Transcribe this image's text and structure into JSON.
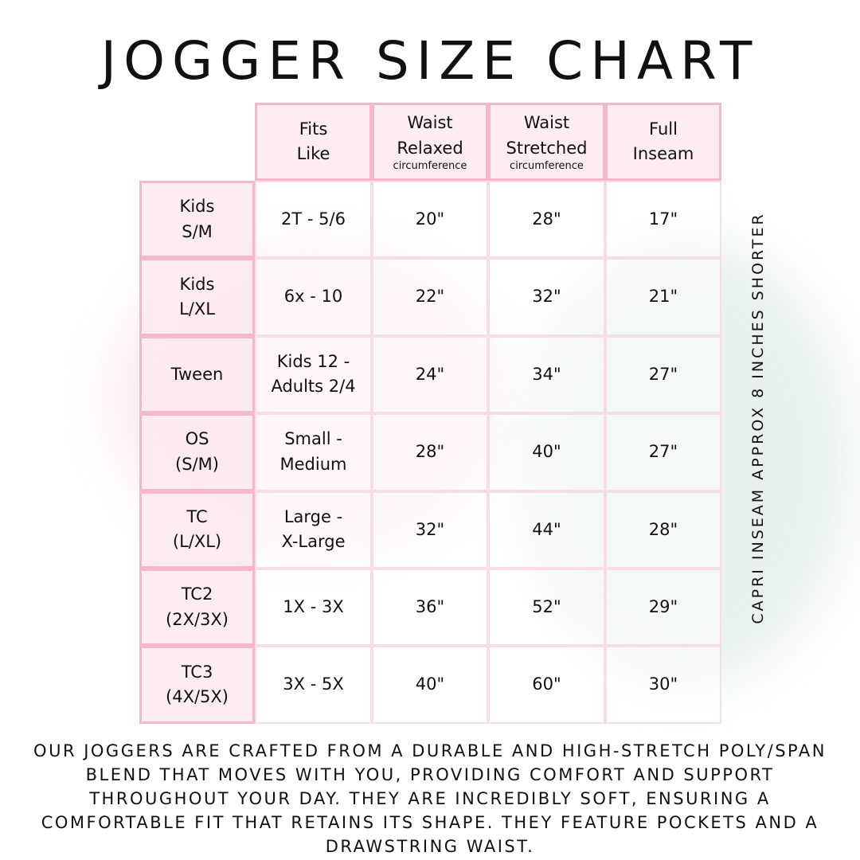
{
  "title": "JOGGER SIZE CHART",
  "colors": {
    "border": "#f5b8c8",
    "header_fill": "#fdeaf0"
  },
  "headers": [
    {
      "lines": [
        "Fits",
        "Like"
      ],
      "sub": ""
    },
    {
      "lines": [
        "Waist",
        "Relaxed"
      ],
      "sub": "circumference"
    },
    {
      "lines": [
        "Waist",
        "Stretched"
      ],
      "sub": "circumference"
    },
    {
      "lines": [
        "Full",
        "Inseam"
      ],
      "sub": ""
    }
  ],
  "rows": [
    {
      "size": [
        "Kids",
        "S/M"
      ],
      "fits": [
        "2T - 5/6"
      ],
      "relaxed": "20\"",
      "stretched": "28\"",
      "inseam": "17\""
    },
    {
      "size": [
        "Kids",
        "L/XL"
      ],
      "fits": [
        "6x - 10"
      ],
      "relaxed": "22\"",
      "stretched": "32\"",
      "inseam": "21\""
    },
    {
      "size": [
        "Tween"
      ],
      "fits": [
        "Kids 12 -",
        "Adults 2/4"
      ],
      "relaxed": "24\"",
      "stretched": "34\"",
      "inseam": "27\""
    },
    {
      "size": [
        "OS",
        "(S/M)"
      ],
      "fits": [
        "Small -",
        "Medium"
      ],
      "relaxed": "28\"",
      "stretched": "40\"",
      "inseam": "27\""
    },
    {
      "size": [
        "TC",
        "(L/XL)"
      ],
      "fits": [
        "Large -",
        "X-Large"
      ],
      "relaxed": "32\"",
      "stretched": "44\"",
      "inseam": "28\""
    },
    {
      "size": [
        "TC2",
        "(2X/3X)"
      ],
      "fits": [
        "1X - 3X"
      ],
      "relaxed": "36\"",
      "stretched": "52\"",
      "inseam": "29\""
    },
    {
      "size": [
        "TC3",
        "(4X/5X)"
      ],
      "fits": [
        "3X - 5X"
      ],
      "relaxed": "40\"",
      "stretched": "60\"",
      "inseam": "30\""
    }
  ],
  "side_note": "CAPRI INSEAM APPROX 8 INCHES SHORTER",
  "description": "Our joggers are crafted from a durable and high-stretch poly/span blend that moves with you, providing comfort and support throughout your day. They are incredibly soft, ensuring a comfortable fit that retains its shape. They feature pockets and a drawstring waist."
}
